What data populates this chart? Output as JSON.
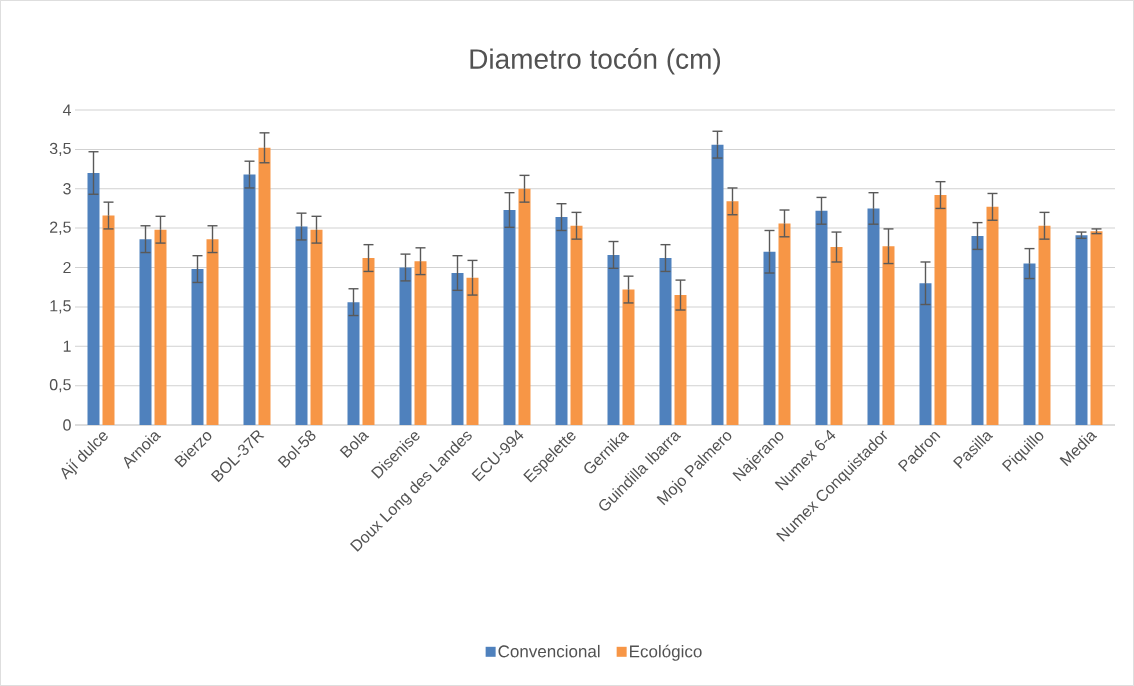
{
  "chart_data": {
    "type": "bar",
    "title": "Diametro tocón (cm)",
    "categories": [
      "Ají dulce",
      "Arnoia",
      "Bierzo",
      "BOL-37R",
      "Bol-58",
      "Bola",
      "Disenise",
      "Doux Long des Landes",
      "ECU-994",
      "Espelette",
      "Gernika",
      "Guindilla Ibarra",
      "Mojo Palmero",
      "Najerano",
      "Numex 6-4",
      "Numex Conquistador",
      "Padron",
      "Pasilla",
      "Piquillo",
      "Media"
    ],
    "series": [
      {
        "name": "Convencional",
        "color": "#4f81bd",
        "values": [
          3.2,
          2.36,
          1.98,
          3.18,
          2.52,
          1.56,
          2.0,
          1.93,
          2.73,
          2.64,
          2.16,
          2.12,
          3.56,
          2.2,
          2.72,
          2.75,
          1.8,
          2.4,
          2.05,
          2.41
        ],
        "errors": [
          0.27,
          0.17,
          0.17,
          0.17,
          0.17,
          0.17,
          0.17,
          0.22,
          0.22,
          0.17,
          0.17,
          0.17,
          0.17,
          0.27,
          0.17,
          0.2,
          0.27,
          0.17,
          0.19,
          0.04
        ]
      },
      {
        "name": "Ecológico",
        "color": "#f79646",
        "values": [
          2.66,
          2.48,
          2.36,
          3.52,
          2.48,
          2.12,
          2.08,
          1.87,
          3.0,
          2.53,
          1.72,
          1.65,
          2.84,
          2.56,
          2.26,
          2.27,
          2.92,
          2.77,
          2.53,
          2.46
        ],
        "errors": [
          0.17,
          0.17,
          0.17,
          0.19,
          0.17,
          0.17,
          0.17,
          0.22,
          0.17,
          0.17,
          0.17,
          0.19,
          0.17,
          0.17,
          0.19,
          0.22,
          0.17,
          0.17,
          0.17,
          0.03
        ]
      }
    ],
    "ylim": [
      0,
      4
    ],
    "yticks": [
      0,
      {
        "value": 0.5,
        "label": "0,5"
      },
      1,
      {
        "value": 1.5,
        "label": "1,5"
      },
      2,
      {
        "value": 2.5,
        "label": "2,5"
      },
      3,
      {
        "value": 3.5,
        "label": "3,5"
      },
      4
    ],
    "grid": "y",
    "legend": "bottom"
  }
}
